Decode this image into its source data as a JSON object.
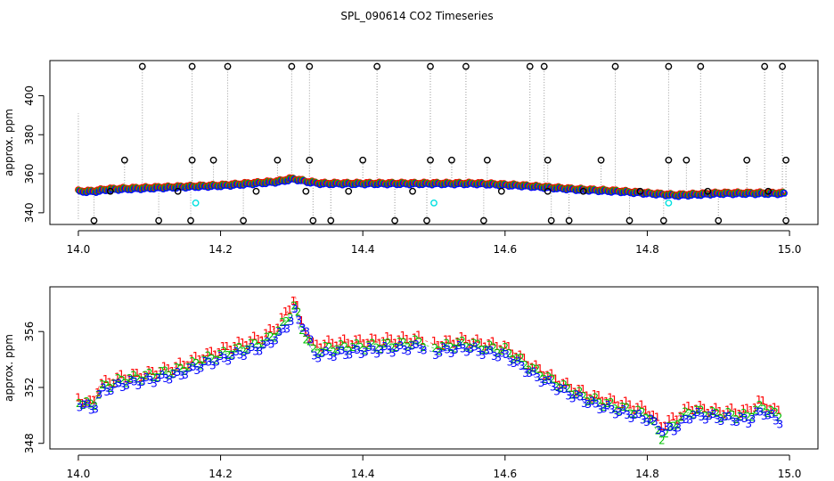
{
  "title": "SPL_090614  CO2 Timeseries",
  "colors": {
    "series_1": "#ff0000",
    "series_2": "#00c000",
    "series_3": "#0000ff",
    "outlier": "#000000",
    "cyan_marker": "#00e0e0",
    "dotted_line": "#999999"
  },
  "chart_data": [
    {
      "type": "scatter",
      "ylabel": "approx. ppm",
      "xlabel": "",
      "xlim": [
        13.96,
        15.04
      ],
      "ylim": [
        334,
        418
      ],
      "xticks": [
        "14.0",
        "14.2",
        "14.4",
        "14.6",
        "14.8",
        "15.0"
      ],
      "xtick_values": [
        14.0,
        14.2,
        14.4,
        14.6,
        14.8,
        15.0
      ],
      "yticks": [
        "340",
        "360",
        "380",
        "400"
      ],
      "ytick_values": [
        340,
        360,
        380,
        400
      ],
      "baseline": {
        "x": [
          14.0,
          14.02,
          14.04,
          14.08,
          14.12,
          14.16,
          14.2,
          14.24,
          14.28,
          14.3,
          14.32,
          14.34,
          14.4,
          14.48,
          14.5,
          14.56,
          14.62,
          14.66,
          14.7,
          14.76,
          14.8,
          14.84,
          14.9,
          14.96,
          14.99
        ],
        "y": [
          351,
          351,
          352,
          352.5,
          353,
          353.5,
          354,
          355,
          356,
          357.5,
          356,
          355,
          355,
          355,
          355,
          355,
          354,
          353,
          352,
          351,
          350,
          349,
          350,
          350,
          350
        ]
      },
      "outliers_high": [
        14.09,
        14.16,
        14.21,
        14.3,
        14.325,
        14.42,
        14.495,
        14.545,
        14.635,
        14.655,
        14.755,
        14.83,
        14.875,
        14.965,
        14.99
      ],
      "outliers_mid": [
        14.065,
        14.16,
        14.19,
        14.28,
        14.325,
        14.4,
        14.495,
        14.525,
        14.575,
        14.66,
        14.735,
        14.83,
        14.855,
        14.94,
        14.995
      ],
      "outliers_low": [
        14.022,
        14.113,
        14.158,
        14.232,
        14.33,
        14.355,
        14.445,
        14.49,
        14.57,
        14.665,
        14.69,
        14.775,
        14.823,
        14.9,
        14.995
      ],
      "outliers_below": [
        14.045,
        14.14,
        14.25,
        14.32,
        14.38,
        14.47,
        14.595,
        14.66,
        14.71,
        14.79,
        14.885,
        14.97
      ],
      "outlier_values": {
        "high": 415,
        "mid": 367,
        "low": 336,
        "below": 351
      },
      "cyan_points": [
        [
          14.165,
          345
        ],
        [
          14.5,
          345
        ],
        [
          14.83,
          345
        ]
      ]
    },
    {
      "type": "line",
      "ylabel": "approx. ppm",
      "xlabel": "",
      "xlim": [
        13.96,
        15.04
      ],
      "ylim": [
        347.6,
        359.2
      ],
      "xticks": [
        "14.0",
        "14.2",
        "14.4",
        "14.6",
        "14.8",
        "15.0"
      ],
      "xtick_values": [
        14.0,
        14.2,
        14.4,
        14.6,
        14.8,
        15.0
      ],
      "yticks": [
        "348",
        "352",
        "356"
      ],
      "ytick_values": [
        348,
        352,
        356
      ],
      "series_labels": [
        "1",
        "2",
        "3"
      ],
      "x": [
        14.0,
        14.02,
        14.03,
        14.06,
        14.1,
        14.14,
        14.18,
        14.22,
        14.26,
        14.28,
        14.295,
        14.305,
        14.31,
        14.315,
        14.33,
        14.36,
        14.4,
        14.44,
        14.48,
        14.5,
        14.54,
        14.6,
        14.64,
        14.68,
        14.72,
        14.76,
        14.8,
        14.82,
        14.84,
        14.86,
        14.9,
        14.94,
        14.96,
        14.98
      ],
      "series": [
        {
          "name": "1",
          "values": [
            351.2,
            350.8,
            352.2,
            352.7,
            353.0,
            353.5,
            354.3,
            355.0,
            355.6,
            356.4,
            357.5,
            358.6,
            357.0,
            356.5,
            355.0,
            355.2,
            355.3,
            355.4,
            355.5,
            355.1,
            355.4,
            354.9,
            353.5,
            352.3,
            351.4,
            350.9,
            350.4,
            349.3,
            349.8,
            350.6,
            350.3,
            350.3,
            351.0,
            350.3
          ]
        },
        {
          "name": "2",
          "values": [
            351.0,
            350.6,
            351.9,
            352.5,
            352.8,
            353.2,
            354.0,
            354.6,
            355.2,
            356.0,
            357.0,
            358.0,
            356.6,
            356.0,
            354.6,
            354.8,
            354.9,
            355.0,
            355.2,
            354.8,
            355.1,
            354.6,
            353.2,
            352.0,
            351.1,
            350.5,
            350.0,
            348.4,
            349.5,
            350.3,
            350.0,
            349.9,
            350.6,
            350.0
          ]
        },
        {
          "name": "3",
          "values": [
            350.8,
            350.4,
            351.7,
            352.2,
            352.5,
            352.9,
            353.7,
            354.3,
            354.9,
            355.7,
            356.6,
            357.6,
            356.2,
            356.6,
            354.3,
            354.4,
            354.6,
            354.7,
            354.9,
            354.5,
            354.8,
            354.2,
            352.8,
            351.7,
            350.8,
            350.2,
            349.7,
            348.9,
            349.1,
            350.0,
            349.8,
            349.6,
            350.3,
            349.6
          ]
        }
      ]
    }
  ]
}
